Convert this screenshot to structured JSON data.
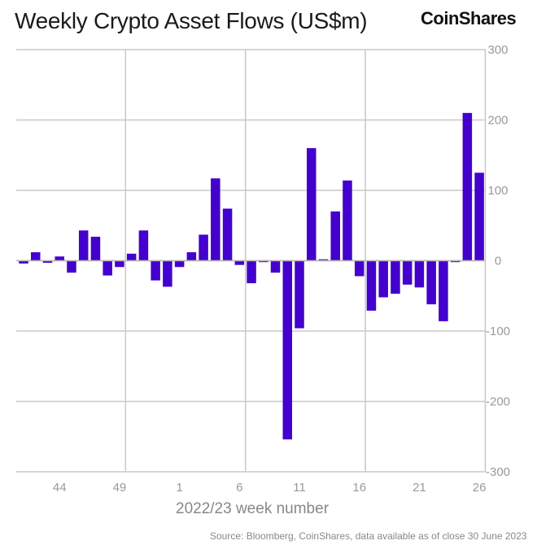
{
  "header": {
    "title": "Weekly Crypto Asset Flows (US$m)",
    "logo": "CoinShares"
  },
  "footer": {
    "source": "Source: Bloomberg, CoinShares, data available as of close 30 June 2023"
  },
  "chart_data": {
    "type": "bar",
    "title": "Weekly Crypto Asset Flows (US$m)",
    "xlabel": "2022/23 week number",
    "ylabel": "",
    "ylim": [
      -300,
      300
    ],
    "yticks": [
      300,
      200,
      100,
      0,
      -100,
      -200,
      -300
    ],
    "y_axis_side": "right",
    "grid": true,
    "bar_color": "#4400cc",
    "categories": [
      "41",
      "42",
      "43",
      "44",
      "45",
      "46",
      "47",
      "48",
      "49",
      "50",
      "51",
      "52",
      "53",
      "1",
      "2",
      "3",
      "4",
      "5",
      "6",
      "7",
      "8",
      "9",
      "10",
      "11",
      "12",
      "13",
      "14",
      "15",
      "16",
      "17",
      "18",
      "19",
      "20",
      "21",
      "22",
      "23",
      "24",
      "25",
      "26"
    ],
    "values": [
      -4,
      12,
      -3,
      6,
      -17,
      43,
      34,
      -21,
      -9,
      10,
      43,
      -28,
      -37,
      -9,
      12,
      37,
      117,
      74,
      -6,
      -32,
      -2,
      -17,
      -254,
      -96,
      160,
      2,
      70,
      114,
      -22,
      -71,
      -52,
      -47,
      -34,
      -38,
      -62,
      -86,
      -2,
      210,
      125
    ],
    "xtick_labels": [
      "44",
      "49",
      "1",
      "6",
      "11",
      "16",
      "21",
      "26"
    ]
  }
}
